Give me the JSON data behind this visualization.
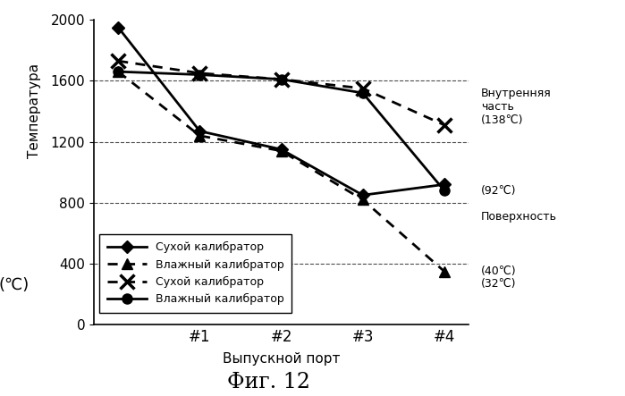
{
  "x_labels": [
    "",
    "#1",
    "#2",
    "#3",
    "#4"
  ],
  "x_values": [
    0,
    1,
    2,
    3,
    4
  ],
  "series": [
    {
      "name": "dry_diamond",
      "label": "Сухой калибратор",
      "y": [
        1950,
        1270,
        1150,
        850,
        920
      ],
      "linestyle": "solid",
      "marker": "D",
      "markersize": 7,
      "linewidth": 2.0,
      "color": "#000000"
    },
    {
      "name": "wet_triangle",
      "label": "Влажный калибратор",
      "y": [
        1660,
        1240,
        1140,
        820,
        350
      ],
      "linestyle": "dotted",
      "marker": "^",
      "markersize": 8,
      "linewidth": 2.0,
      "color": "#000000"
    },
    {
      "name": "dry_x",
      "label": "Сухой калибратор",
      "y": [
        1730,
        1650,
        1610,
        1550,
        1310
      ],
      "linestyle": "dotted",
      "marker": "x",
      "markersize": 11,
      "linewidth": 2.0,
      "color": "#000000"
    },
    {
      "name": "wet_circle",
      "label": "Влажный калибратор",
      "y": [
        1660,
        1640,
        1610,
        1520,
        880
      ],
      "linestyle": "solid",
      "marker": "o",
      "markersize": 8,
      "linewidth": 2.0,
      "color": "#000000"
    }
  ],
  "ylim": [
    0,
    2000
  ],
  "yticks": [
    0,
    400,
    800,
    1200,
    1600,
    2000
  ],
  "ylabel_top": "Температура",
  "ylabel_bottom": "(℃)",
  "xlabel": "Выпускной порт",
  "title": "Фиг. 12",
  "grid_yticks": [
    400,
    800,
    1200,
    1600
  ],
  "right_annotations": [
    {
      "y": 1430,
      "text": "Внутренняя\nчасть\n(138℃)"
    },
    {
      "y": 880,
      "text": "(92℃)"
    },
    {
      "y": 710,
      "text": "Поверхность"
    },
    {
      "y": 350,
      "text": "(40℃)"
    },
    {
      "y": 270,
      "text": "(32℃)"
    }
  ],
  "background_color": "#ffffff"
}
